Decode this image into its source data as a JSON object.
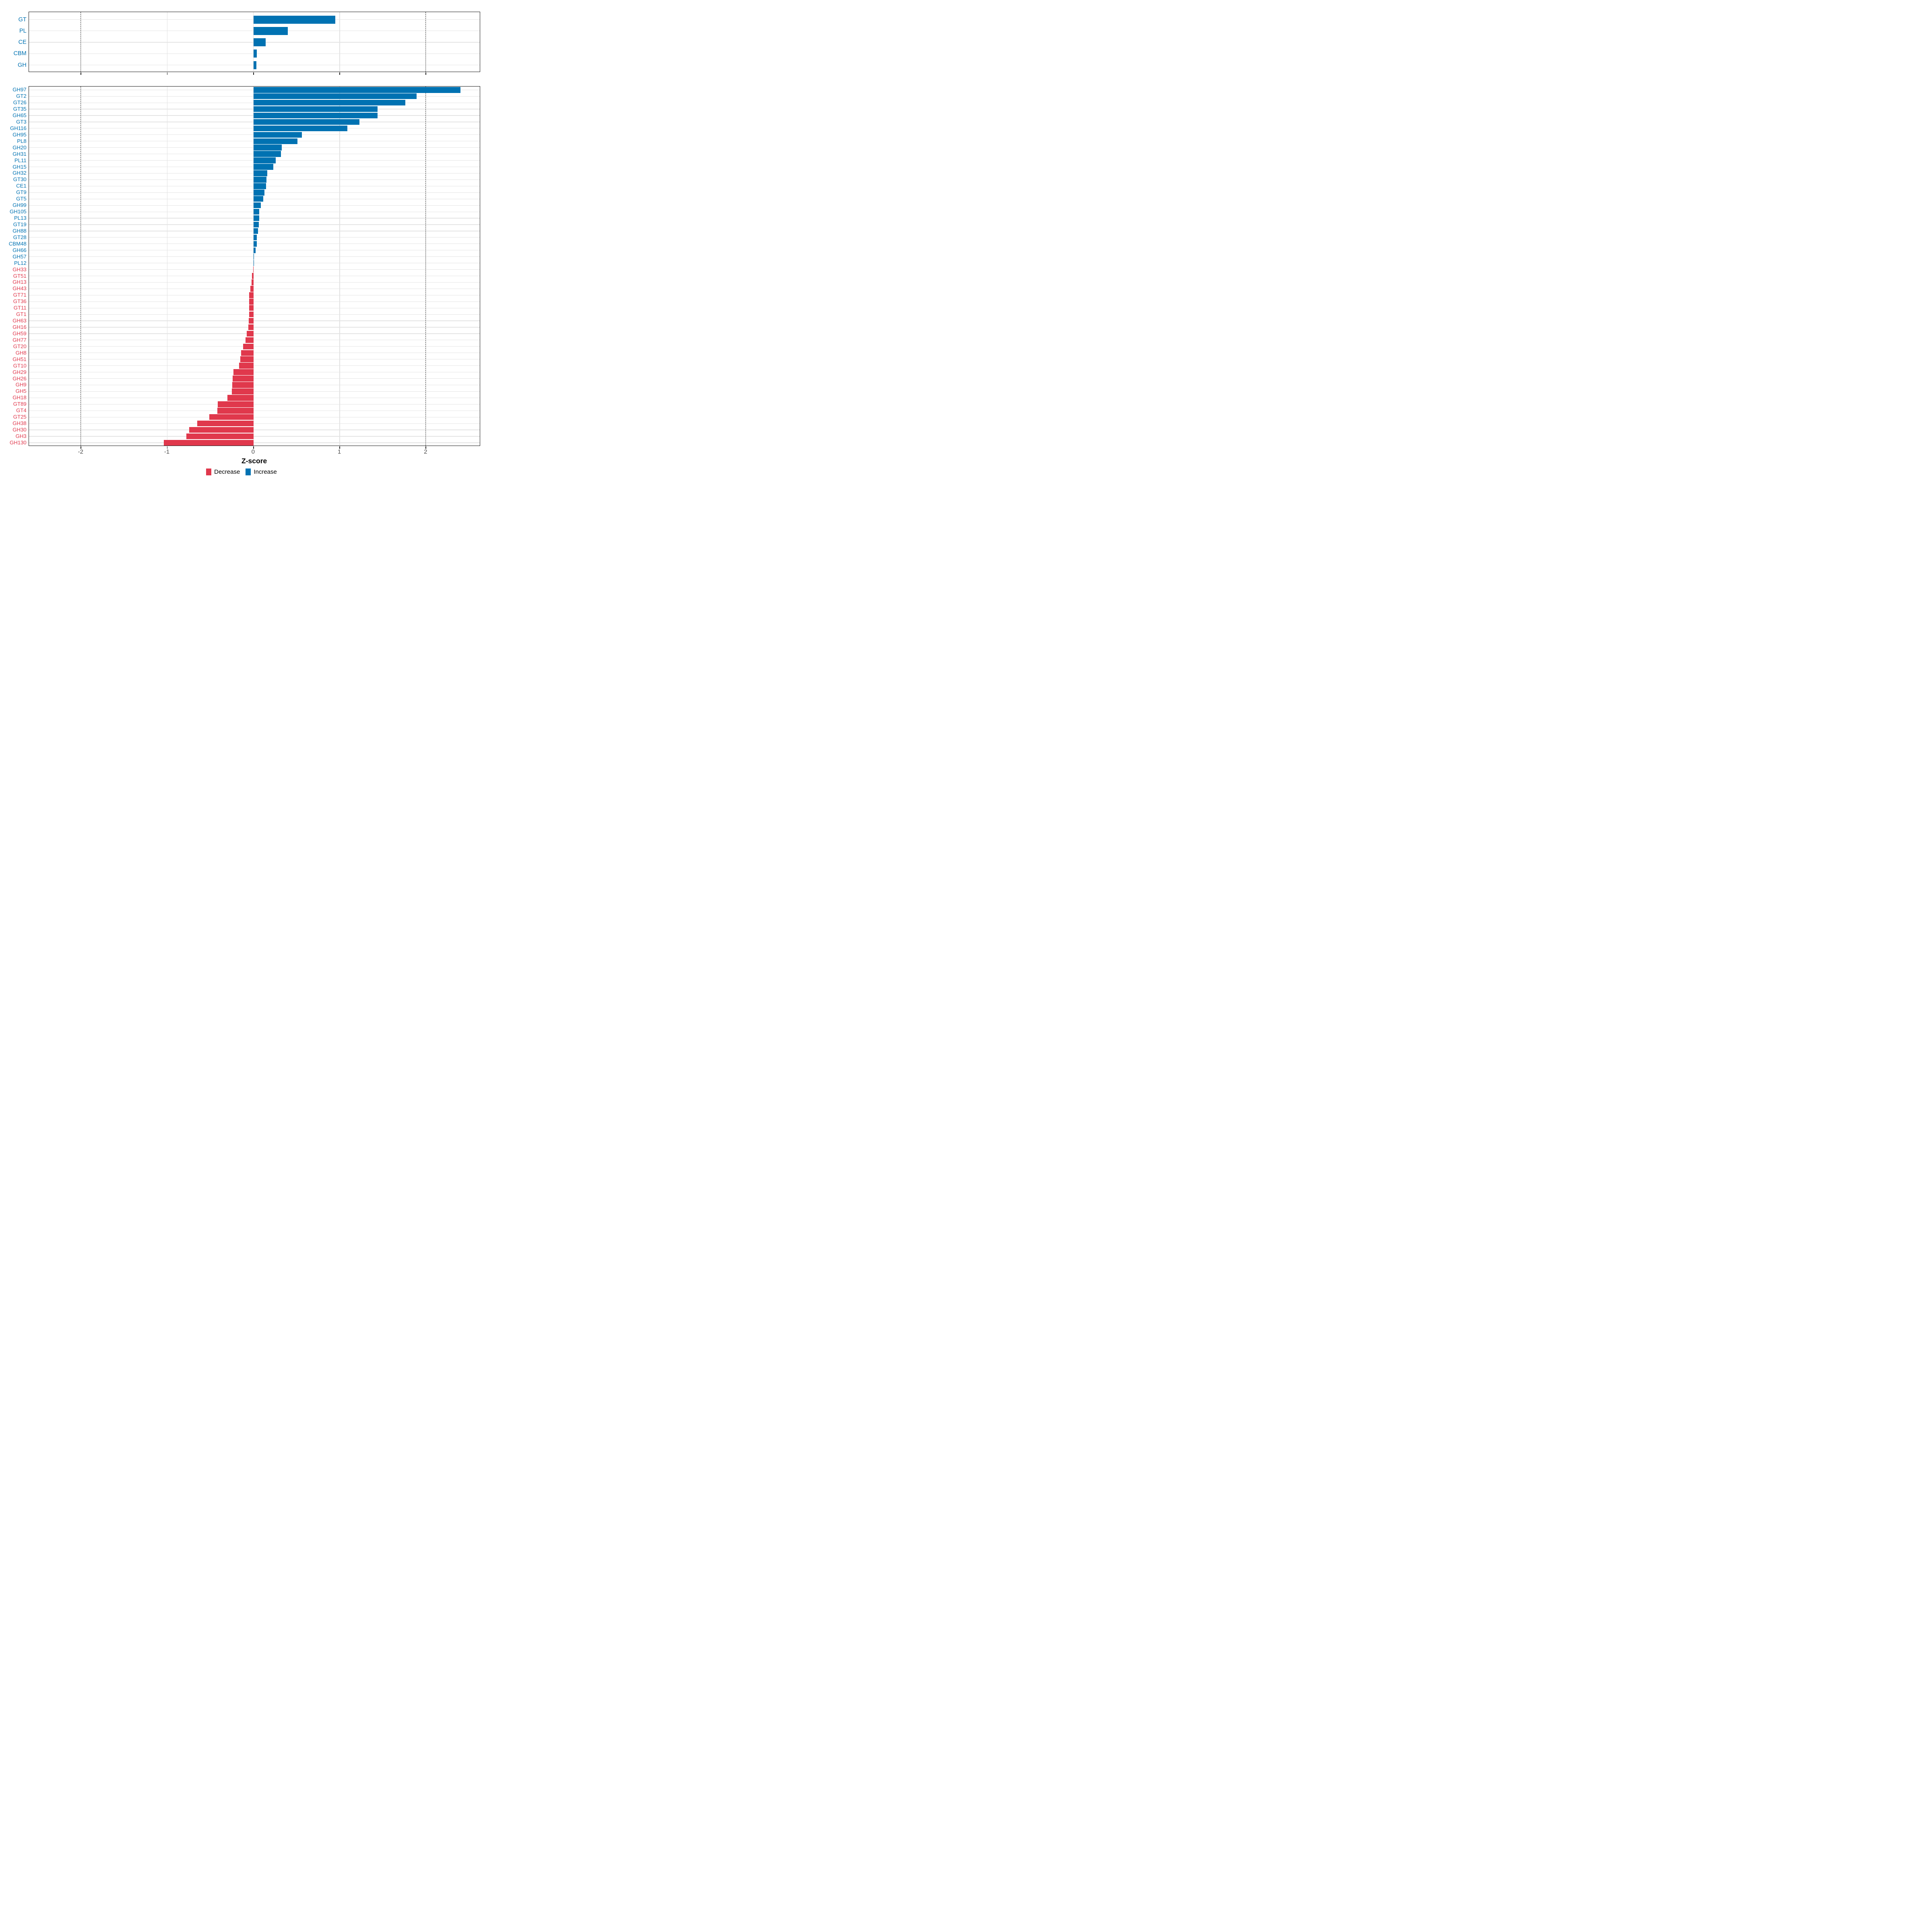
{
  "chart_data": {
    "type": "bar",
    "orientation": "horizontal",
    "title": "",
    "xlabel": "Z-score",
    "ylabel": "",
    "xlim": [
      -2.6,
      2.63
    ],
    "x_ticks": [
      -2,
      -1,
      0,
      1,
      2
    ],
    "dashed_lines_x": [
      -2,
      2
    ],
    "grid": "on",
    "legend_position": "bottom",
    "colors": {
      "increase": "#0072B2",
      "decrease": "#E0384C"
    },
    "legend": [
      {
        "label": "Decrease",
        "color": "#E0384C"
      },
      {
        "label": "Increase",
        "color": "#0072B2"
      }
    ],
    "panels": [
      {
        "name": "category-summary",
        "categories": [
          "GT",
          "PL",
          "CE",
          "CBM",
          "GH"
        ],
        "values": [
          0.95,
          0.4,
          0.14,
          0.038,
          0.033
        ]
      },
      {
        "name": "families",
        "categories": [
          "GH97",
          "GT2",
          "GT26",
          "GT35",
          "GH65",
          "GT3",
          "GH116",
          "GH95",
          "PL8",
          "GH20",
          "GH31",
          "PL11",
          "GH15",
          "GH32",
          "GT30",
          "CE1",
          "GT9",
          "GT5",
          "GH99",
          "GH105",
          "PL13",
          "GT19",
          "GH88",
          "GT28",
          "CBM48",
          "GH66",
          "GH57",
          "PL12",
          "GH33",
          "GT51",
          "GH13",
          "GH43",
          "GT71",
          "GT36",
          "GT11",
          "GT1",
          "GH63",
          "GH16",
          "GH59",
          "GH77",
          "GT20",
          "GH8",
          "GH51",
          "GT10",
          "GH29",
          "GH26",
          "GH9",
          "GH5",
          "GH18",
          "GT89",
          "GT4",
          "GT25",
          "GH38",
          "GH30",
          "GH3",
          "GH130"
        ],
        "values": [
          2.4,
          1.89,
          1.76,
          1.44,
          1.44,
          1.23,
          1.09,
          0.56,
          0.51,
          0.33,
          0.32,
          0.26,
          0.23,
          0.16,
          0.152,
          0.146,
          0.125,
          0.115,
          0.087,
          0.067,
          0.065,
          0.063,
          0.052,
          0.04,
          0.038,
          0.024,
          0.008,
          0.005,
          -0.004,
          -0.018,
          -0.021,
          -0.037,
          -0.048,
          -0.048,
          -0.049,
          -0.049,
          -0.054,
          -0.06,
          -0.077,
          -0.093,
          -0.119,
          -0.144,
          -0.154,
          -0.166,
          -0.231,
          -0.243,
          -0.248,
          -0.252,
          -0.3,
          -0.415,
          -0.42,
          -0.514,
          -0.652,
          -0.747,
          -0.78,
          -1.04
        ]
      }
    ]
  }
}
